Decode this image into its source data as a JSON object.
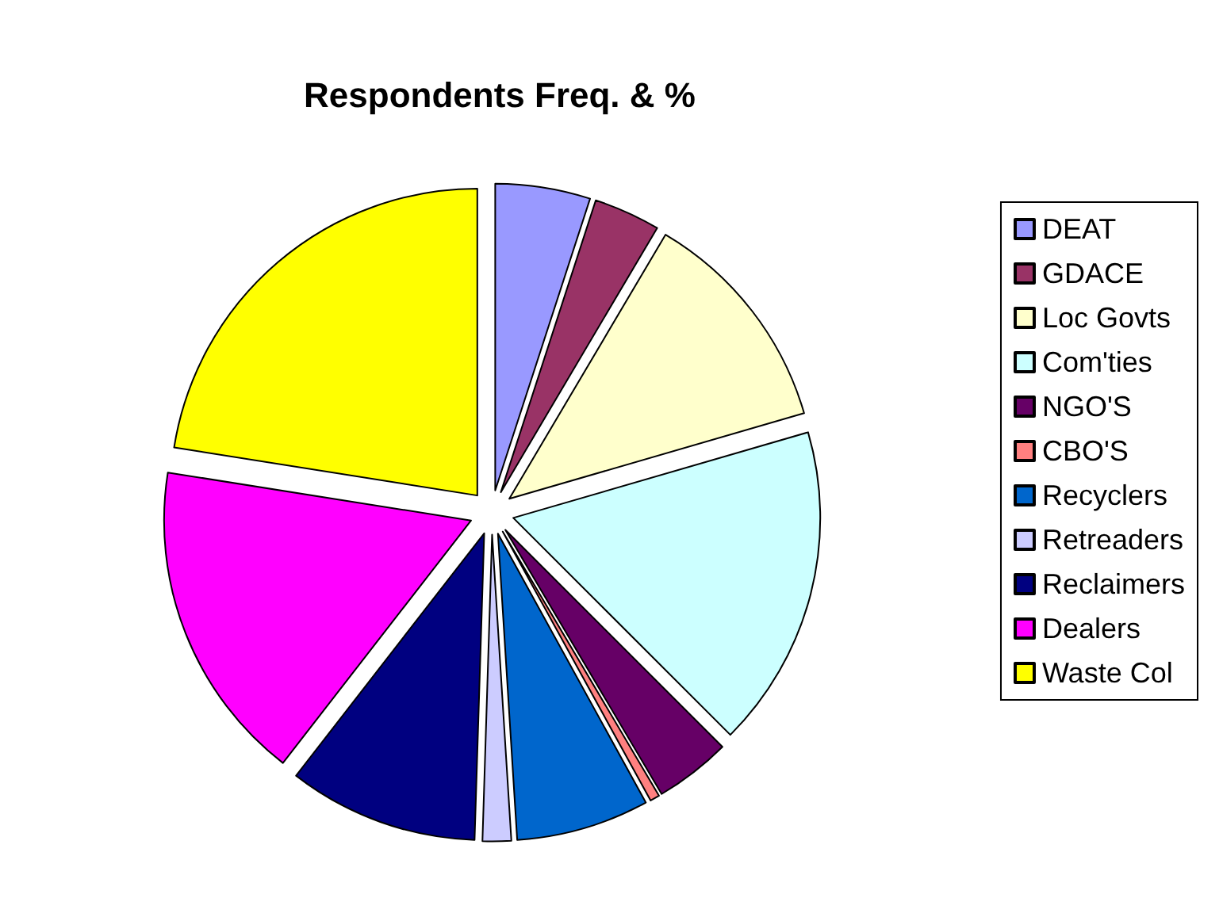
{
  "chart_data": {
    "type": "pie",
    "title": "Respondents Freq. & %",
    "categories": [
      "DEAT",
      "GDACE",
      "Loc Govts",
      "Com'ties",
      "NGO'S",
      "CBO'S",
      "Recyclers",
      "Retreaders",
      "Reclaimers",
      "Dealers",
      "Waste Col"
    ],
    "values": [
      5,
      3.5,
      12,
      17,
      4,
      0.5,
      7,
      1.5,
      10,
      17,
      22.5
    ],
    "colors": [
      "#9999ff",
      "#993366",
      "#ffffcc",
      "#ccffff",
      "#660066",
      "#ff8080",
      "#0066cc",
      "#ccccff",
      "#000080",
      "#ff00ff",
      "#ffff00"
    ],
    "legend": "right"
  }
}
